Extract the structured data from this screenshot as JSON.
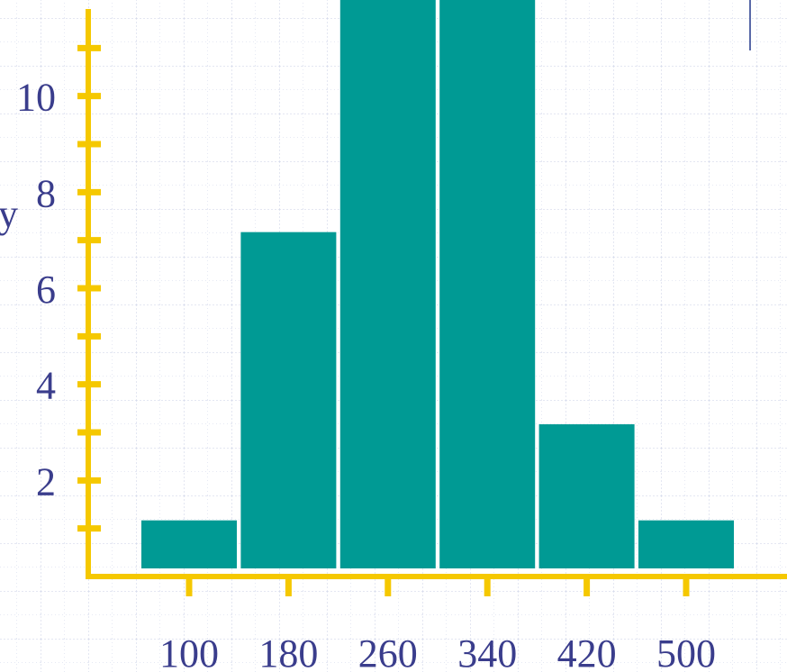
{
  "chart_data": {
    "type": "bar",
    "ylabel": "y",
    "categories": [
      "100",
      "180",
      "260",
      "340",
      "420",
      "500"
    ],
    "values": [
      1,
      7,
      12,
      12,
      3,
      1
    ],
    "color": "#009a94",
    "axis_color": "#f5c800",
    "ylim": [
      0,
      12
    ],
    "yticks": [
      2,
      4,
      6,
      8,
      10
    ],
    "yminorticks": [
      1,
      3,
      5,
      7,
      9,
      11
    ],
    "grid": true
  }
}
